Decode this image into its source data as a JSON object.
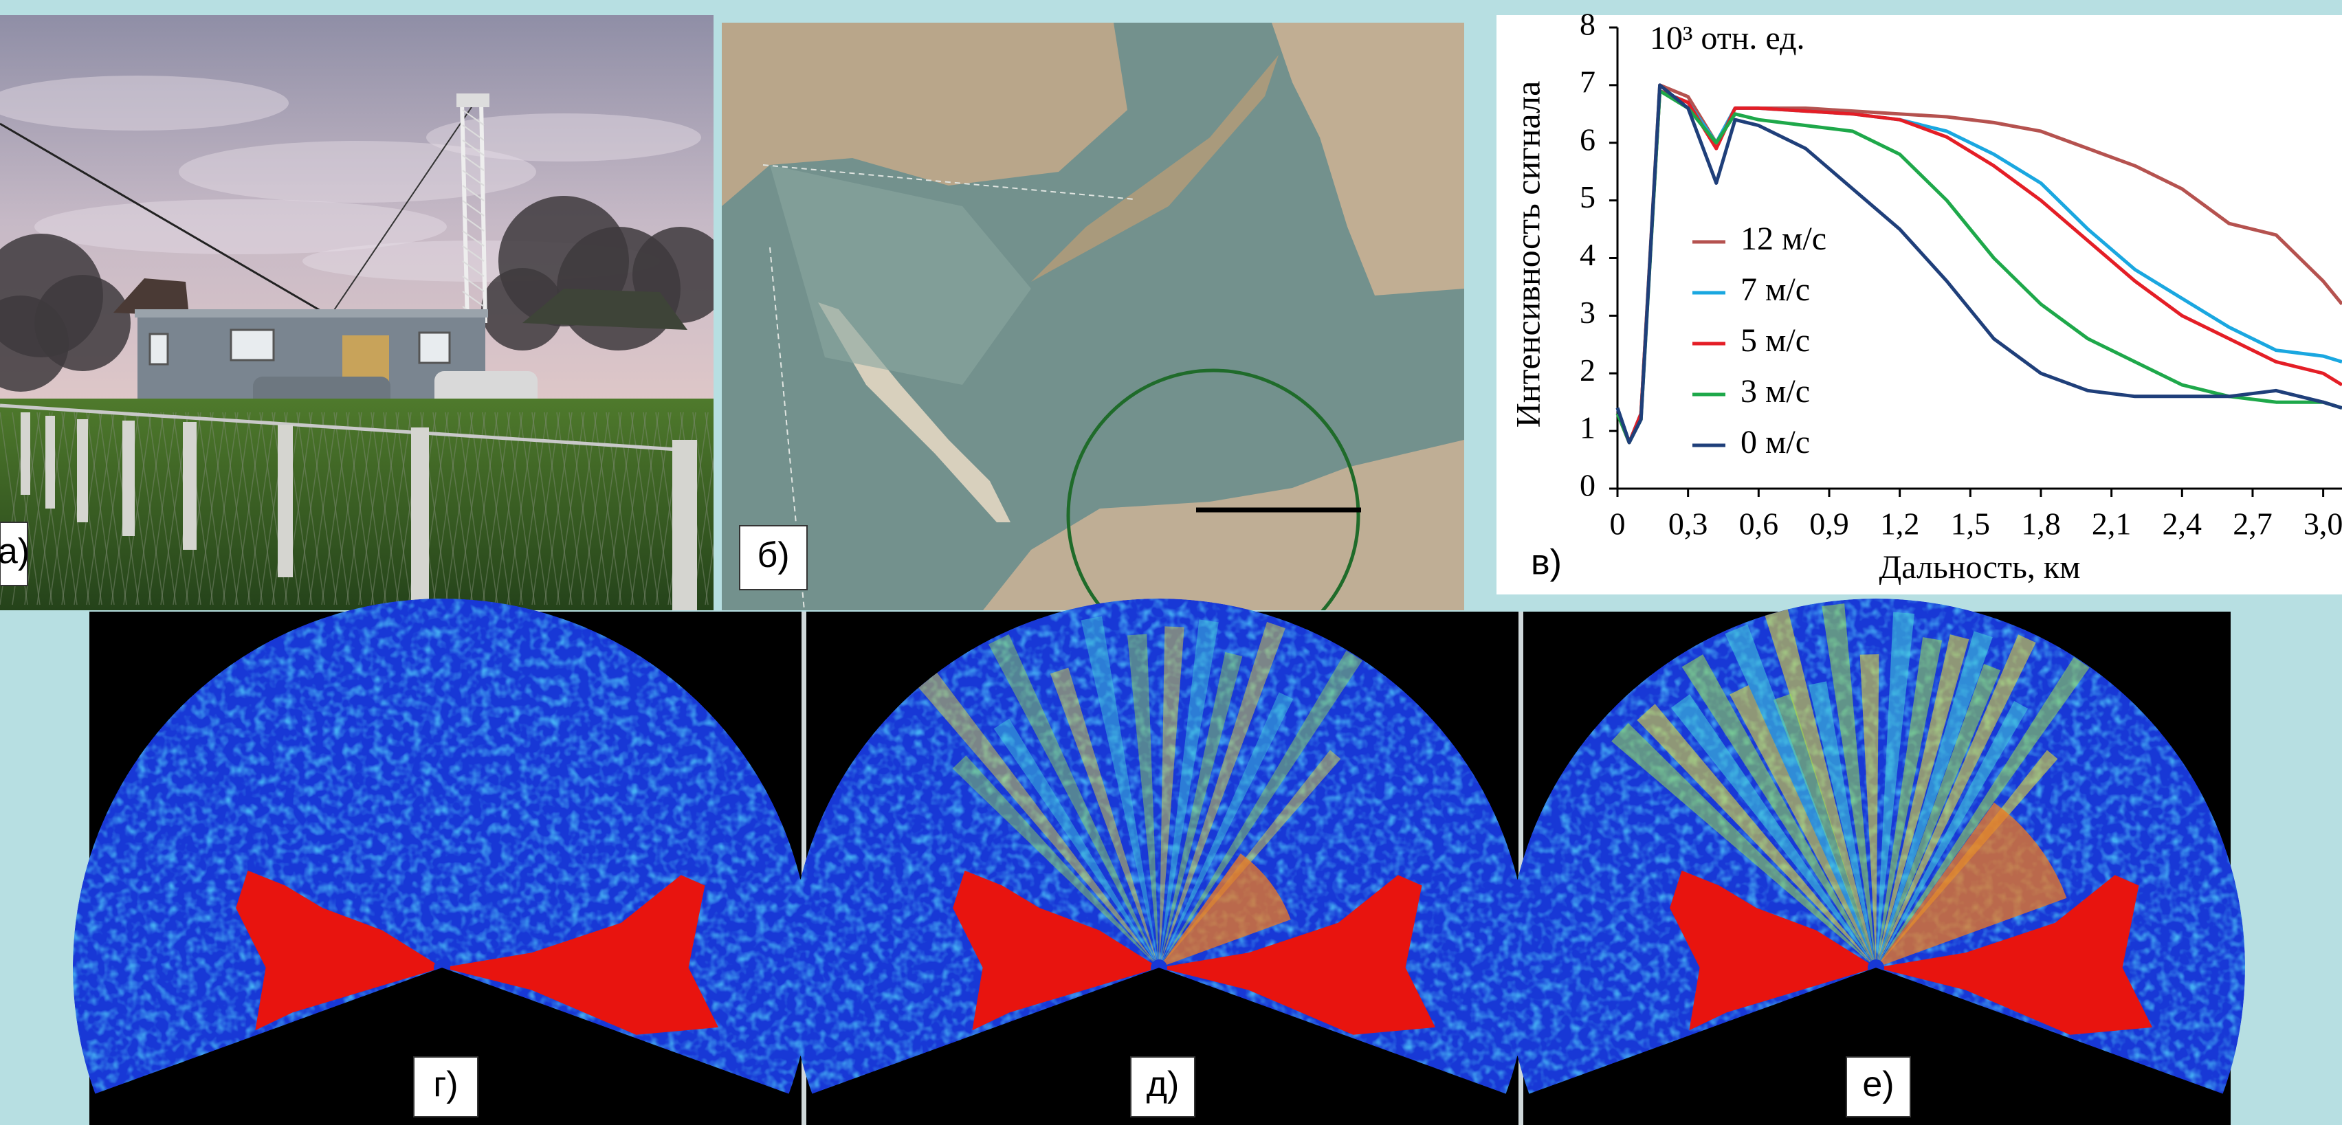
{
  "labels": [
    "а)",
    "б)",
    "в)",
    "г)",
    "д)",
    "е)"
  ],
  "chart_data": {
    "type": "line",
    "annotation": "10³ отн. ед.",
    "ylabel": "Интенсивность сигнала",
    "xlabel": "Дальность, км",
    "x": [
      0,
      0.05,
      0.1,
      0.18,
      0.3,
      0.42,
      0.5,
      0.6,
      0.8,
      1.0,
      1.2,
      1.4,
      1.6,
      1.8,
      2.0,
      2.2,
      2.4,
      2.6,
      2.8,
      3.0,
      3.08
    ],
    "series": [
      {
        "name": "12 м/с",
        "color": "#b5524f",
        "values": [
          1.4,
          0.8,
          1.3,
          7.0,
          6.8,
          6.0,
          6.6,
          6.6,
          6.6,
          6.55,
          6.5,
          6.45,
          6.35,
          6.2,
          5.9,
          5.6,
          5.2,
          4.6,
          4.4,
          3.6,
          3.2
        ]
      },
      {
        "name": "7 м/с",
        "color": "#1aa7e0",
        "values": [
          1.4,
          0.8,
          1.3,
          6.9,
          6.7,
          6.0,
          6.6,
          6.6,
          6.55,
          6.5,
          6.4,
          6.2,
          5.8,
          5.3,
          4.5,
          3.8,
          3.3,
          2.8,
          2.4,
          2.3,
          2.2
        ]
      },
      {
        "name": "5 м/с",
        "color": "#e41e26",
        "values": [
          1.3,
          0.8,
          1.3,
          6.9,
          6.7,
          5.9,
          6.6,
          6.6,
          6.55,
          6.5,
          6.4,
          6.1,
          5.6,
          5.0,
          4.3,
          3.6,
          3.0,
          2.6,
          2.2,
          2.0,
          1.8
        ]
      },
      {
        "name": "3 м/с",
        "color": "#1ea84a",
        "values": [
          1.3,
          0.8,
          1.2,
          6.9,
          6.6,
          6.0,
          6.5,
          6.4,
          6.3,
          6.2,
          5.8,
          5.0,
          4.0,
          3.2,
          2.6,
          2.2,
          1.8,
          1.6,
          1.5,
          1.5,
          1.4
        ]
      },
      {
        "name": "0 м/с",
        "color": "#1f3f7a",
        "values": [
          1.4,
          0.8,
          1.2,
          7.0,
          6.6,
          5.3,
          6.4,
          6.3,
          5.9,
          5.2,
          4.5,
          3.6,
          2.6,
          2.0,
          1.7,
          1.6,
          1.6,
          1.6,
          1.7,
          1.5,
          1.4
        ]
      }
    ],
    "xlim": [
      0,
      3.08
    ],
    "ylim": [
      0,
      8
    ],
    "xticks": [
      0,
      {
        "value": 0.3,
        "label": "0,3"
      },
      {
        "value": 0.6,
        "label": "0,6"
      },
      {
        "value": 0.9,
        "label": "0,9"
      },
      {
        "value": 1.2,
        "label": "1,2"
      },
      {
        "value": 1.5,
        "label": "1,5"
      },
      {
        "value": 1.8,
        "label": "1,8"
      },
      {
        "value": 2.1,
        "label": "2,1"
      },
      {
        "value": 2.4,
        "label": "2,4"
      },
      {
        "value": 2.7,
        "label": "2,7"
      },
      {
        "value": 3.0,
        "label": "3,0"
      }
    ],
    "yticks": [
      0,
      1,
      2,
      3,
      4,
      5,
      6,
      7,
      8
    ],
    "grid": false
  }
}
